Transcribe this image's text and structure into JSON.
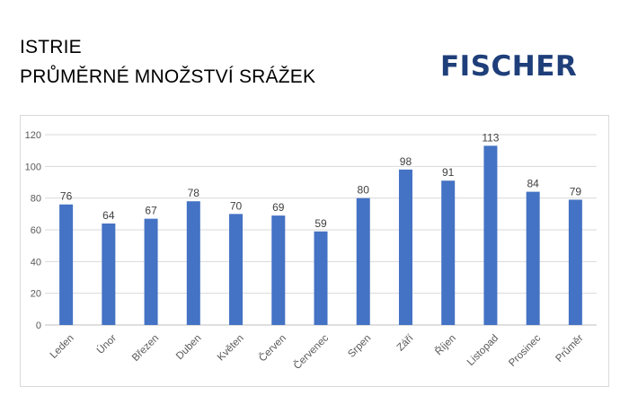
{
  "title": {
    "line1": "ISTRIE",
    "line2": "PRŮMĚRNÉ MNOŽSTVÍ SRÁŽEK"
  },
  "logo": {
    "text": "FISCHER",
    "color": "#1f3f7a"
  },
  "chart_data": {
    "type": "bar",
    "categories": [
      "Leden",
      "Únor",
      "Březen",
      "Duben",
      "Květen",
      "Červen",
      "Červenec",
      "Srpen",
      "Září",
      "Říjen",
      "Listopad",
      "Prosinec",
      "Průměr"
    ],
    "values": [
      76,
      64,
      67,
      78,
      70,
      69,
      59,
      80,
      98,
      91,
      113,
      84,
      79
    ],
    "ylim": [
      0,
      120
    ],
    "yticks": [
      0,
      20,
      40,
      60,
      80,
      100,
      120
    ],
    "grid": true,
    "legend": "none",
    "bar_color": "#4472c4"
  }
}
